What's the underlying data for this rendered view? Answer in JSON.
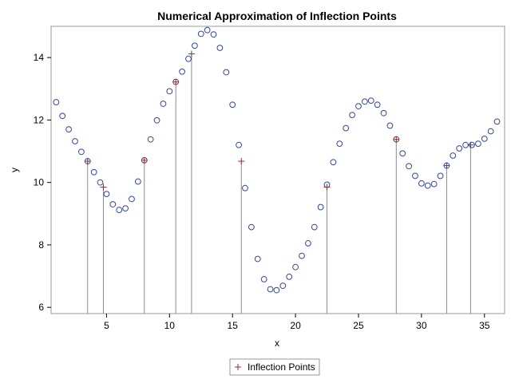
{
  "chart_data": {
    "type": "scatter",
    "title": "Numerical Approximation of Inflection Points",
    "xlabel": "x",
    "ylabel": "y",
    "xlim": [
      0.6,
      36.6
    ],
    "ylim": [
      5.8,
      15.0
    ],
    "xticks": [
      5,
      10,
      15,
      20,
      25,
      30,
      35
    ],
    "yticks": [
      6,
      8,
      10,
      12,
      14
    ],
    "grid": false,
    "legend_position": "bottom",
    "colors": {
      "points": "#3346a8",
      "inflection": "#9b2c2c",
      "drop_lines": "#8a8a8a"
    },
    "series": [
      {
        "marker": "circle",
        "x": [
          1,
          1.5,
          2,
          2.5,
          3,
          3.5,
          4,
          4.5,
          5,
          5.5,
          6,
          6.5,
          7,
          7.5,
          8,
          8.5,
          9,
          9.5,
          10,
          10.5,
          11,
          11.5,
          12,
          12.5,
          13,
          13.5,
          14,
          14.5,
          15,
          15.5,
          16,
          16.5,
          17,
          17.5,
          18,
          18.5,
          19,
          19.5,
          20,
          20.5,
          21,
          21.5,
          22,
          22.5,
          23,
          23.5,
          24,
          24.5,
          25,
          25.5,
          26,
          26.5,
          27,
          27.5,
          28,
          28.5,
          29,
          29.5,
          30,
          30.5,
          31,
          31.5,
          32,
          32.5,
          33,
          33.5,
          34,
          34.5,
          35,
          35.5,
          36
        ],
        "y": [
          12.57,
          12.13,
          11.7,
          11.32,
          10.98,
          10.68,
          10.33,
          10.0,
          9.63,
          9.3,
          9.12,
          9.17,
          9.47,
          10.03,
          10.71,
          11.38,
          11.99,
          12.52,
          12.92,
          13.22,
          13.55,
          13.96,
          14.38,
          14.76,
          14.88,
          14.74,
          14.31,
          13.53,
          12.49,
          11.2,
          9.82,
          8.57,
          7.55,
          6.9,
          6.58,
          6.55,
          6.69,
          6.98,
          7.29,
          7.65,
          8.05,
          8.57,
          9.21,
          9.93,
          10.65,
          11.24,
          11.74,
          12.16,
          12.44,
          12.59,
          12.62,
          12.49,
          12.22,
          11.82,
          11.38,
          10.93,
          10.52,
          10.21,
          9.97,
          9.9,
          9.95,
          10.21,
          10.54,
          10.86,
          11.09,
          11.2,
          11.2,
          11.24,
          11.4,
          11.64,
          11.95
        ]
      },
      {
        "name": "Inflection Points",
        "marker": "plus",
        "x": [
          3.5,
          4.75,
          8.0,
          10.5,
          11.75,
          15.7,
          22.5,
          28.0,
          32.0,
          33.9
        ],
        "y": [
          10.68,
          9.85,
          10.71,
          13.22,
          14.12,
          10.68,
          9.85,
          11.38,
          10.54,
          11.2
        ]
      }
    ]
  }
}
